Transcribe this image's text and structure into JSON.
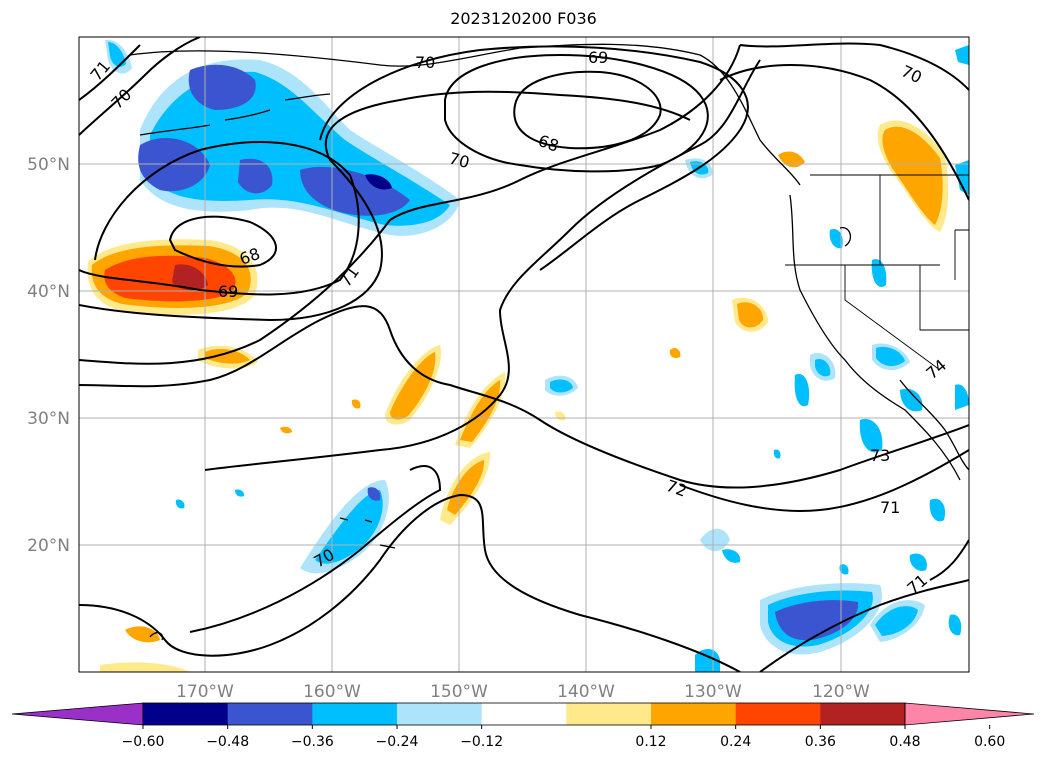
{
  "title": "2023120200 F036",
  "map": {
    "lon_labels": [
      "170°W",
      "160°W",
      "150°W",
      "140°W",
      "130°W",
      "120°W"
    ],
    "lat_labels": [
      "50°N",
      "40°N",
      "30°N",
      "20°N"
    ],
    "grid": true
  },
  "contour_labels": [
    "71",
    "70",
    "70",
    "69",
    "68",
    "70",
    "70",
    "68",
    "69",
    "71",
    "74",
    "73",
    "72",
    "71",
    "71",
    "70"
  ],
  "colorbar": {
    "ticks": [
      "−0.60",
      "−0.48",
      "−0.36",
      "−0.24",
      "−0.12",
      "0.12",
      "0.24",
      "0.36",
      "0.48",
      "0.60"
    ],
    "colors": [
      "#9b30c8",
      "#00008b",
      "#3a55cf",
      "#00bfff",
      "#aee4fb",
      "#ffffff",
      "#ffe98a",
      "#ffa500",
      "#ff4500",
      "#b22222",
      "#ff85a8"
    ]
  }
}
